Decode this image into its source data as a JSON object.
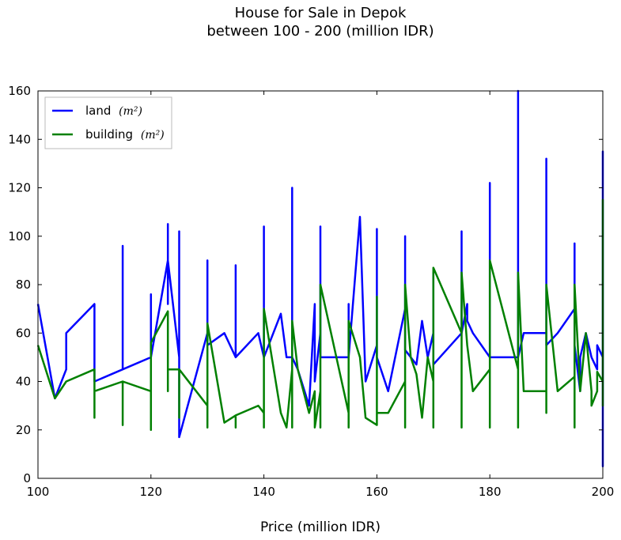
{
  "chart_data": {
    "type": "line",
    "title_lines": [
      "House for Sale in Depok",
      "between 100 - 200 (million IDR)"
    ],
    "xlabel": "Price (million IDR)",
    "ylabel": "",
    "xlim": [
      100,
      200
    ],
    "ylim": [
      0,
      160
    ],
    "xticks": [
      100,
      120,
      140,
      160,
      180,
      200
    ],
    "yticks": [
      0,
      20,
      40,
      60,
      80,
      100,
      120,
      140,
      160
    ],
    "grid": false,
    "legend": "top-left",
    "series": [
      {
        "name": "land",
        "unit": "(m²)",
        "color": "#0000ff",
        "x": [
          100,
          103,
          105,
          105,
          110,
          110,
          115,
          115,
          115,
          120,
          120,
          120,
          123,
          123,
          123,
          123,
          125,
          125,
          125,
          130,
          130,
          130,
          133,
          135,
          135,
          135,
          139,
          140,
          140,
          140,
          143,
          144,
          145,
          145,
          145,
          146,
          148,
          149,
          149,
          150,
          150,
          150,
          150,
          155,
          155,
          155,
          157,
          158,
          160,
          160,
          160,
          162,
          165,
          165,
          165,
          165,
          167,
          168,
          169,
          170,
          170,
          170,
          175,
          175,
          175,
          176,
          176,
          177,
          180,
          180,
          180,
          185,
          185,
          185,
          186,
          189,
          190,
          190,
          190,
          192,
          195,
          195,
          195,
          196,
          196,
          197,
          198,
          199,
          199,
          200,
          200,
          200,
          200
        ],
        "y": [
          72,
          33,
          45,
          60,
          72,
          40,
          45,
          96,
          45,
          50,
          76,
          50,
          90,
          105,
          72,
          90,
          50,
          102,
          17,
          60,
          90,
          55,
          60,
          50,
          88,
          50,
          60,
          50,
          104,
          50,
          68,
          50,
          50,
          120,
          50,
          45,
          30,
          72,
          40,
          60,
          104,
          50,
          50,
          50,
          72,
          50,
          108,
          40,
          55,
          103,
          50,
          36,
          70,
          100,
          55,
          53,
          47,
          65,
          50,
          60,
          85,
          47,
          60,
          102,
          60,
          72,
          65,
          60,
          50,
          122,
          50,
          50,
          160,
          50,
          60,
          60,
          60,
          132,
          55,
          60,
          70,
          97,
          55,
          36,
          50,
          60,
          50,
          45,
          55,
          50,
          135,
          5,
          50
        ]
      },
      {
        "name": "building",
        "unit": "(m²)",
        "color": "#008000",
        "x": [
          100,
          103,
          105,
          110,
          110,
          110,
          115,
          115,
          115,
          120,
          120,
          120,
          123,
          123,
          123,
          125,
          125,
          125,
          130,
          130,
          130,
          133,
          135,
          135,
          135,
          139,
          140,
          140,
          140,
          143,
          144,
          145,
          145,
          145,
          146,
          148,
          149,
          149,
          150,
          150,
          150,
          155,
          155,
          155,
          157,
          158,
          160,
          160,
          160,
          162,
          165,
          165,
          165,
          166,
          167,
          168,
          169,
          170,
          170,
          170,
          175,
          175,
          175,
          176,
          177,
          180,
          180,
          180,
          185,
          185,
          185,
          186,
          189,
          190,
          190,
          190,
          192,
          195,
          195,
          195,
          196,
          197,
          198,
          198,
          199,
          199,
          200,
          200,
          200,
          200
        ],
        "y": [
          55,
          33,
          40,
          45,
          25,
          36,
          40,
          22,
          40,
          36,
          20,
          56,
          69,
          36,
          45,
          45,
          25,
          45,
          30,
          21,
          64,
          23,
          26,
          21,
          26,
          30,
          27,
          21,
          70,
          27,
          21,
          45,
          21,
          65,
          45,
          27,
          36,
          21,
          36,
          21,
          80,
          27,
          21,
          65,
          50,
          25,
          22,
          75,
          27,
          27,
          40,
          21,
          80,
          50,
          43,
          25,
          50,
          40,
          21,
          87,
          60,
          21,
          85,
          55,
          36,
          45,
          21,
          90,
          45,
          21,
          85,
          36,
          36,
          36,
          27,
          80,
          36,
          42,
          21,
          80,
          36,
          60,
          36,
          30,
          36,
          44,
          40,
          115,
          30,
          40
        ]
      }
    ]
  }
}
